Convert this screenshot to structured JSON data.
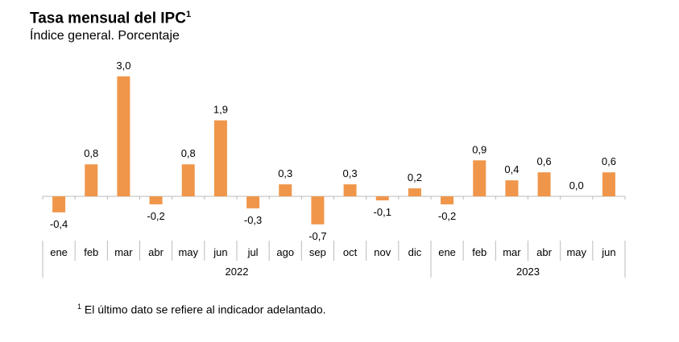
{
  "chart_data": {
    "type": "bar",
    "title": "Tasa mensual del IPC",
    "title_superscript": "1",
    "subtitle": "Índice general. Porcentaje",
    "categories": [
      "ene",
      "feb",
      "mar",
      "abr",
      "may",
      "jun",
      "jul",
      "ago",
      "sep",
      "oct",
      "nov",
      "dic",
      "ene",
      "feb",
      "mar",
      "abr",
      "may",
      "jun"
    ],
    "groups": [
      {
        "label": "2022",
        "count": 12
      },
      {
        "label": "2023",
        "count": 6
      }
    ],
    "values": [
      -0.4,
      0.8,
      3.0,
      -0.2,
      0.8,
      1.9,
      -0.3,
      0.3,
      -0.7,
      0.3,
      -0.1,
      0.2,
      -0.2,
      0.9,
      0.4,
      0.6,
      0.0,
      0.6
    ],
    "data_labels": [
      "-0,4",
      "0,8",
      "3,0",
      "-0,2",
      "0,8",
      "1,9",
      "-0,3",
      "0,3",
      "-0,7",
      "0,3",
      "-0,1",
      "0,2",
      "-0,2",
      "0,9",
      "0,4",
      "0,6",
      "0,0",
      "0,6"
    ],
    "bar_color": "#F0964A",
    "grid": false,
    "legend": "none",
    "footnote_mark": "1",
    "footnote": "El último dato se refiere al indicador adelantado."
  }
}
